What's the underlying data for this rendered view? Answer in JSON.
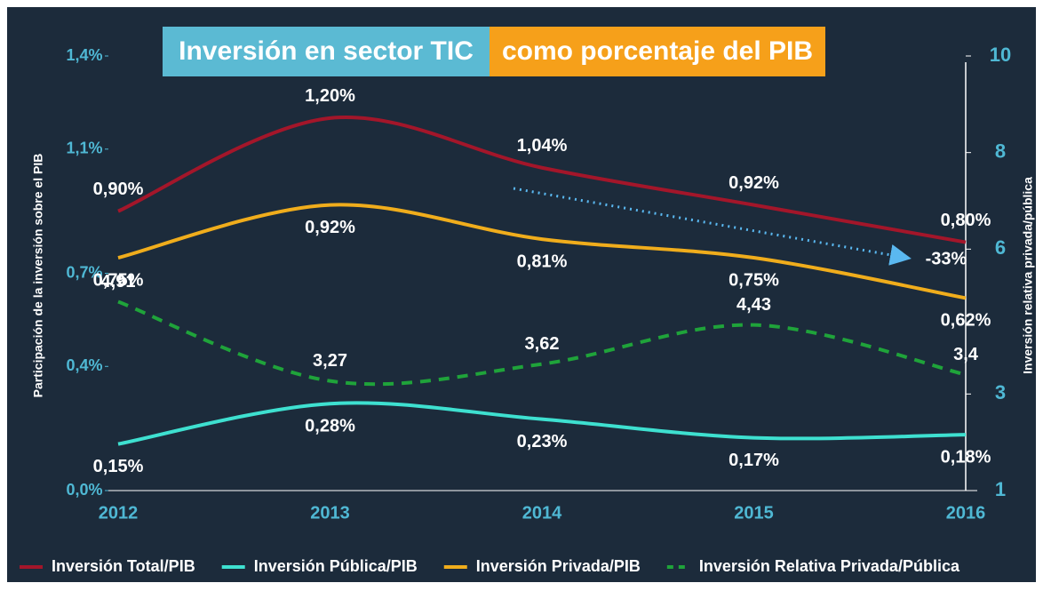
{
  "chart_data": {
    "type": "line",
    "title": "Inversión en sector TIC",
    "subtitle": "como porcentaje del PIB",
    "ylabel": "Participación de la inversión sobre el PIB",
    "y2label": "Inversión relativa privada/pública",
    "categories": [
      "2012",
      "2013",
      "2014",
      "2015",
      "2016"
    ],
    "ylim": [
      0,
      1.4
    ],
    "yticks": [
      {
        "value": 0,
        "label": "0,0%"
      },
      {
        "value": 0.4,
        "label": "0,4%"
      },
      {
        "value": 0.7,
        "label": "0,7%"
      },
      {
        "value": 1.1,
        "label": "1,1%"
      },
      {
        "value": 1.4,
        "label": "1,4%"
      }
    ],
    "y2lim": [
      1,
      10
    ],
    "y2ticks": [
      1,
      3,
      6,
      8,
      10
    ],
    "series": [
      {
        "name": "Inversión Total/PIB",
        "color": "#a3162a",
        "values": [
          0.9,
          1.2,
          1.04,
          0.92,
          0.8
        ],
        "value_labels": [
          "0,90%",
          "1,20%",
          "1,04%",
          "0,92%",
          "0,80%"
        ]
      },
      {
        "name": "Inversión Pública/PIB",
        "color": "#3ee0d0",
        "values": [
          0.15,
          0.28,
          0.23,
          0.17,
          0.18
        ],
        "value_labels": [
          "0,15%",
          "0,28%",
          "0,23%",
          "0,17%",
          "0,18%"
        ]
      },
      {
        "name": "Inversión Privada/PIB",
        "color": "#f0ad1c",
        "values": [
          0.75,
          0.92,
          0.81,
          0.75,
          0.62
        ],
        "value_labels": [
          "0,75%",
          "0,92%",
          "0,81%",
          "0,75%",
          "0,62%"
        ]
      },
      {
        "name": "Inversión Relativa Privada/Pública",
        "color": "#1fa33a",
        "axis": "y2",
        "dashed": true,
        "values": [
          4.91,
          3.27,
          3.62,
          4.43,
          3.4
        ],
        "value_labels": [
          "4,91",
          "3,27",
          "3,62",
          "4,43",
          "3,4"
        ]
      }
    ],
    "annotations": [
      {
        "text": "-33%"
      }
    ]
  }
}
